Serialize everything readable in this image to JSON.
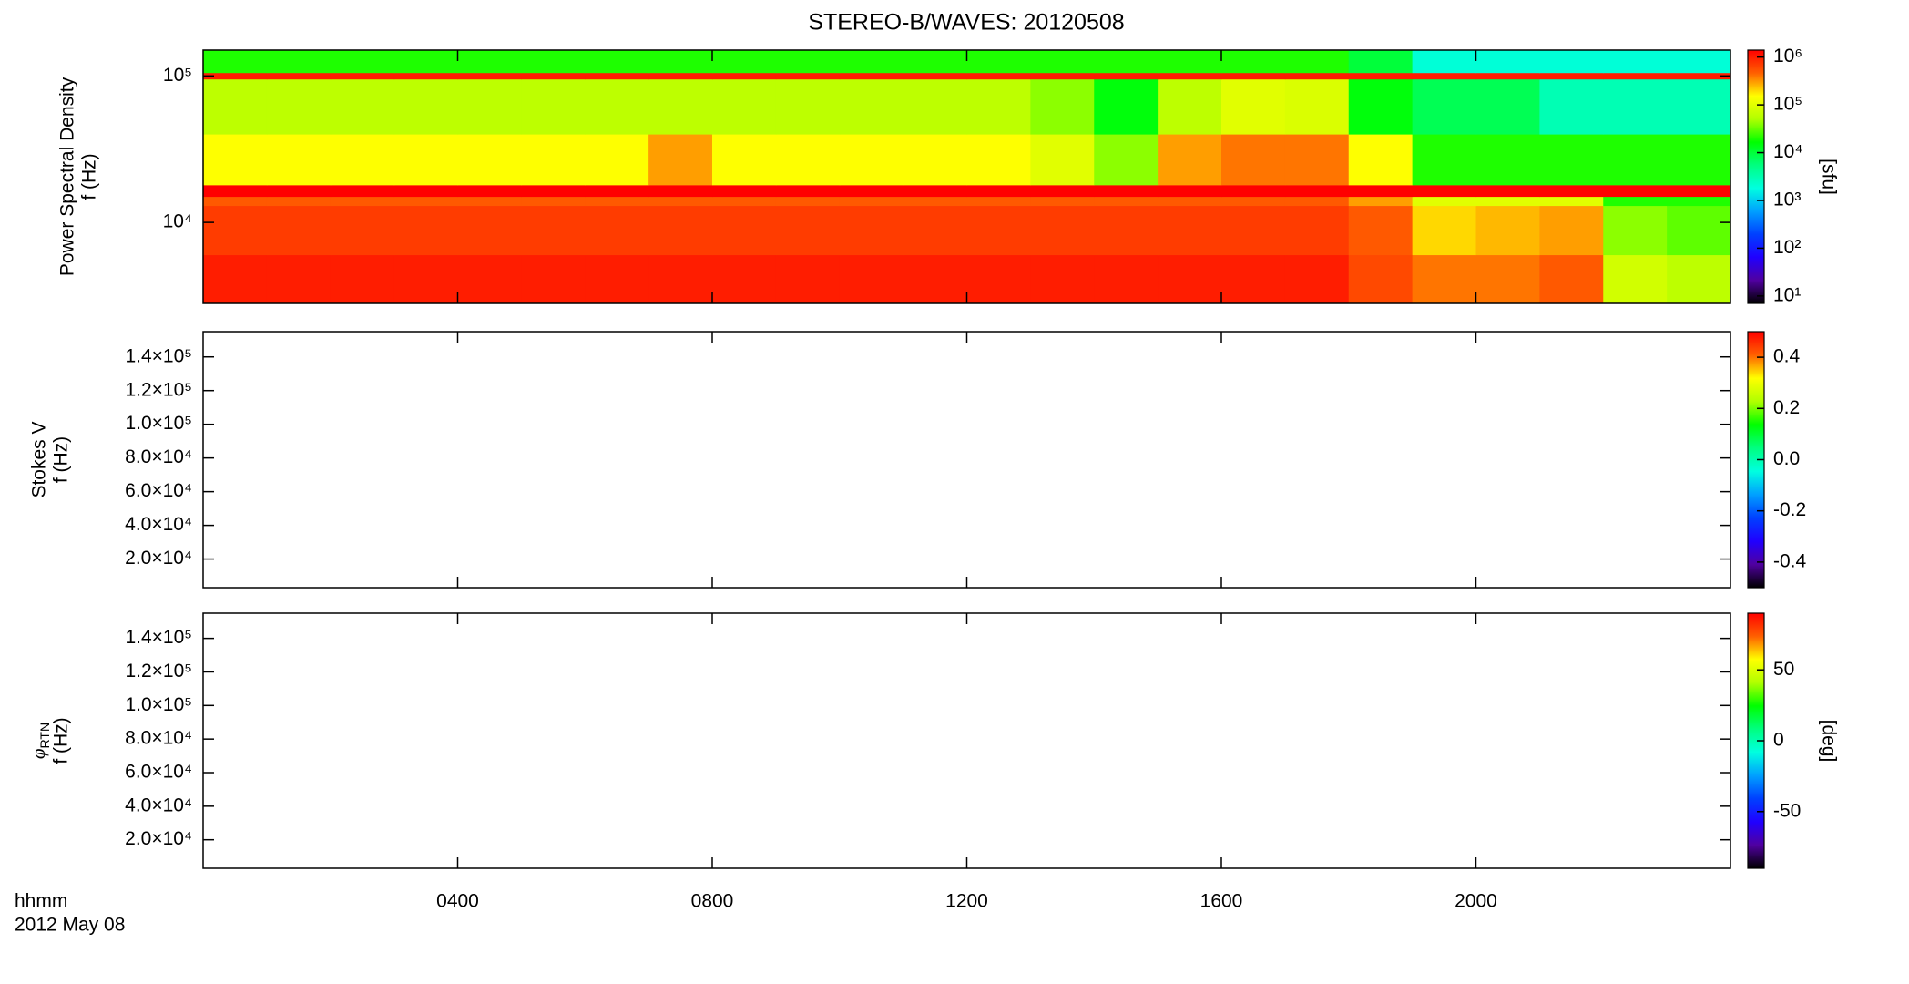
{
  "chart_data": [
    {
      "type": "heatmap",
      "title": "STEREO-B/WAVES: 20120508",
      "ylabel": [
        "Power Spectral Density",
        "f (Hz)"
      ],
      "xlim": [
        0,
        24
      ],
      "ylim": [
        2800,
        150000
      ],
      "ylog": true,
      "yticks": [
        {
          "value": 10000,
          "label": "10⁴"
        },
        {
          "value": 100000,
          "label": "10⁵"
        }
      ],
      "x_edges": [
        0,
        1,
        2,
        3,
        4,
        5,
        6,
        7,
        8,
        9,
        10,
        11,
        12,
        13,
        14,
        15,
        16,
        17,
        18,
        19,
        20,
        21,
        22,
        23,
        24
      ],
      "y_edges": [
        2800,
        6000,
        13000,
        15000,
        18000,
        40000,
        95000,
        105000,
        150000
      ],
      "values": [
        [
          1000000,
          1000000,
          1000000,
          1000000,
          1000000,
          1000000,
          1000000,
          1000000,
          1000000,
          1000000,
          1000000,
          1000000,
          1000000,
          1000000,
          1000000,
          1000000,
          1000000,
          1000000,
          600000,
          400000,
          400000,
          500000,
          80000,
          60000
        ],
        [
          700000,
          700000,
          700000,
          700000,
          700000,
          700000,
          700000,
          700000,
          700000,
          700000,
          700000,
          700000,
          700000,
          700000,
          700000,
          700000,
          700000,
          700000,
          500000,
          200000,
          250000,
          300000,
          40000,
          30000
        ],
        [
          500000,
          500000,
          500000,
          500000,
          500000,
          500000,
          500000,
          500000,
          500000,
          500000,
          500000,
          500000,
          500000,
          500000,
          500000,
          500000,
          500000,
          500000,
          300000,
          100000,
          100000,
          100000,
          20000,
          20000
        ],
        [
          1400000,
          1400000,
          1400000,
          1400000,
          1400000,
          1400000,
          1400000,
          1400000,
          1400000,
          1400000,
          1400000,
          1400000,
          1400000,
          1400000,
          1400000,
          1400000,
          1400000,
          1400000,
          1400000,
          1400000,
          1400000,
          1400000,
          1400000,
          1400000
        ],
        [
          150000,
          150000,
          150000,
          150000,
          150000,
          150000,
          150000,
          300000,
          150000,
          150000,
          150000,
          150000,
          150000,
          100000,
          40000,
          300000,
          400000,
          400000,
          150000,
          20000,
          20000,
          20000,
          20000,
          20000
        ],
        [
          60000,
          60000,
          60000,
          60000,
          60000,
          60000,
          60000,
          60000,
          60000,
          60000,
          60000,
          60000,
          60000,
          40000,
          15000,
          60000,
          100000,
          90000,
          15000,
          8000,
          8000,
          3000,
          3000,
          3000
        ],
        [
          1000000,
          1000000,
          1000000,
          1000000,
          1000000,
          1000000,
          1000000,
          1000000,
          1000000,
          1000000,
          1000000,
          1000000,
          1000000,
          1000000,
          1000000,
          1000000,
          1000000,
          1000000,
          1000000,
          1000000,
          1000000,
          1000000,
          1000000,
          1000000
        ],
        [
          20000,
          20000,
          20000,
          20000,
          20000,
          20000,
          20000,
          20000,
          20000,
          20000,
          20000,
          20000,
          20000,
          20000,
          20000,
          20000,
          20000,
          20000,
          10000,
          2000,
          2000,
          2000,
          2000,
          2000
        ]
      ],
      "colorbar": {
        "log": true,
        "lim": [
          7,
          1400000
        ],
        "label": "[sfu]",
        "ticks": [
          {
            "value": 10,
            "label": "10¹"
          },
          {
            "value": 100,
            "label": "10²"
          },
          {
            "value": 1000,
            "label": "10³"
          },
          {
            "value": 10000,
            "label": "10⁴"
          },
          {
            "value": 100000,
            "label": "10⁵"
          },
          {
            "value": 1000000,
            "label": "10⁶"
          }
        ],
        "colormap": [
          "#000000",
          "#5000a0",
          "#2000ff",
          "#0040ff",
          "#00a0ff",
          "#00ffe0",
          "#00ff80",
          "#00ff00",
          "#b0ff00",
          "#ffff00",
          "#ff6000",
          "#ff0000"
        ]
      }
    },
    {
      "type": "heatmap",
      "ylabel": [
        "Stokes V",
        "f (Hz)"
      ],
      "xlim": [
        0,
        24
      ],
      "ylim": [
        3000,
        155000
      ],
      "yticks": [
        {
          "value": 20000,
          "label": "2.0×10⁴"
        },
        {
          "value": 40000,
          "label": "4.0×10⁴"
        },
        {
          "value": 60000,
          "label": "6.0×10⁴"
        },
        {
          "value": 80000,
          "label": "8.0×10⁴"
        },
        {
          "value": 100000,
          "label": "1.0×10⁵"
        },
        {
          "value": 120000,
          "label": "1.2×10⁵"
        },
        {
          "value": 140000,
          "label": "1.4×10⁵"
        }
      ],
      "colorbar": {
        "log": false,
        "lim": [
          -0.5,
          0.5
        ],
        "ticks": [
          -0.4,
          -0.2,
          {
            "value": 0,
            "label": "0.0"
          },
          0.2,
          0.4
        ],
        "colormap": [
          "#000000",
          "#5000a0",
          "#2000ff",
          "#0040ff",
          "#00a0ff",
          "#00ffe0",
          "#00ff80",
          "#00ff00",
          "#b0ff00",
          "#ffff00",
          "#ff6000",
          "#ff0000"
        ]
      }
    },
    {
      "type": "heatmap",
      "quantity": {
        "symbol": "φ",
        "subscript": "RTN"
      },
      "ylabel": [
        "f (Hz)"
      ],
      "xlabel": [
        "hhmm",
        "2012 May 08"
      ],
      "xlim": [
        0,
        24
      ],
      "xticks": [
        {
          "value": 4,
          "label": "0400"
        },
        {
          "value": 8,
          "label": "0800"
        },
        {
          "value": 12,
          "label": "1200"
        },
        {
          "value": 16,
          "label": "1600"
        },
        {
          "value": 20,
          "label": "2000"
        }
      ],
      "ylim": [
        3000,
        155000
      ],
      "yticks": [
        {
          "value": 20000,
          "label": "2.0×10⁴"
        },
        {
          "value": 40000,
          "label": "4.0×10⁴"
        },
        {
          "value": 60000,
          "label": "6.0×10⁴"
        },
        {
          "value": 80000,
          "label": "8.0×10⁴"
        },
        {
          "value": 100000,
          "label": "1.0×10⁵"
        },
        {
          "value": 120000,
          "label": "1.2×10⁵"
        },
        {
          "value": 140000,
          "label": "1.4×10⁵"
        }
      ],
      "colorbar": {
        "log": false,
        "lim": [
          -90,
          90
        ],
        "label": "[deg]",
        "ticks": [
          -50,
          0,
          50
        ],
        "colormap": [
          "#000000",
          "#5000a0",
          "#2000ff",
          "#0040ff",
          "#00a0ff",
          "#00ffe0",
          "#00ff80",
          "#00ff00",
          "#b0ff00",
          "#ffff00",
          "#ff6000",
          "#ff0000"
        ]
      }
    }
  ]
}
